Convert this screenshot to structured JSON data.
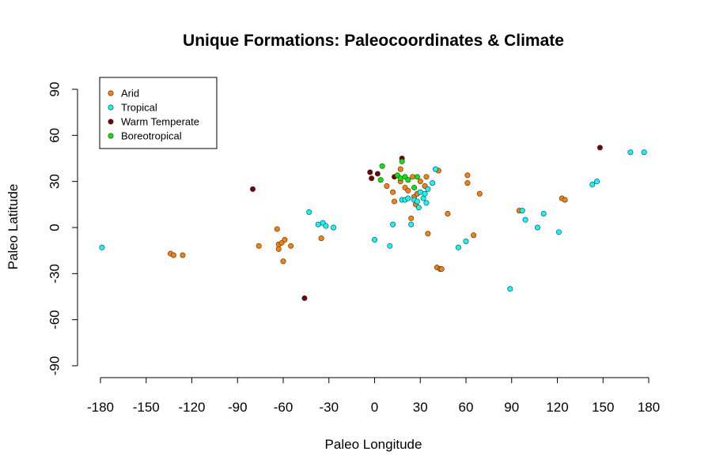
{
  "chart_data": {
    "type": "scatter",
    "title": "Unique Formations: Paleocoordinates & Climate",
    "xlabel": "Paleo Longitude",
    "ylabel": "Paleo Latitude",
    "xlim": [
      -180,
      180
    ],
    "ylim": [
      -90,
      90
    ],
    "xticks": [
      -180,
      -150,
      -120,
      -90,
      -60,
      -30,
      0,
      30,
      60,
      90,
      120,
      150,
      180
    ],
    "yticks": [
      -90,
      -60,
      -30,
      0,
      30,
      60,
      90
    ],
    "grid": false,
    "legend_position": "top-left",
    "series": [
      {
        "name": "Arid",
        "color": "#FF8000",
        "points": [
          [
            -134,
            -17
          ],
          [
            -132,
            -18
          ],
          [
            -126,
            -18
          ],
          [
            -76,
            -12
          ],
          [
            -64,
            -1
          ],
          [
            -63,
            -11
          ],
          [
            -63,
            -14
          ],
          [
            -61,
            -10
          ],
          [
            -60,
            -22
          ],
          [
            -59,
            -8
          ],
          [
            -55,
            -12
          ],
          [
            -35,
            -7
          ],
          [
            8,
            27
          ],
          [
            12,
            23
          ],
          [
            13,
            17
          ],
          [
            17,
            30
          ],
          [
            17,
            38
          ],
          [
            20,
            26
          ],
          [
            22,
            24
          ],
          [
            24,
            6
          ],
          [
            25,
            33
          ],
          [
            26,
            20
          ],
          [
            27,
            15
          ],
          [
            28,
            22
          ],
          [
            30,
            30
          ],
          [
            33,
            27
          ],
          [
            34,
            33
          ],
          [
            35,
            -4
          ],
          [
            42,
            37
          ],
          [
            41,
            -26
          ],
          [
            43,
            -27
          ],
          [
            44,
            -27
          ],
          [
            48,
            9
          ],
          [
            61,
            34
          ],
          [
            61,
            29
          ],
          [
            65,
            -5
          ],
          [
            69,
            22
          ],
          [
            95,
            11
          ],
          [
            123,
            19
          ],
          [
            125,
            18
          ]
        ]
      },
      {
        "name": "Tropical",
        "color": "#00FFFF",
        "points": [
          [
            -179,
            -13
          ],
          [
            -43,
            10
          ],
          [
            -37,
            2
          ],
          [
            -34,
            3
          ],
          [
            -32,
            1
          ],
          [
            -27,
            0
          ],
          [
            0,
            -8
          ],
          [
            10,
            -12
          ],
          [
            12,
            2
          ],
          [
            18,
            18
          ],
          [
            20,
            18
          ],
          [
            22,
            19
          ],
          [
            24,
            2
          ],
          [
            26,
            18
          ],
          [
            28,
            17
          ],
          [
            29,
            13
          ],
          [
            30,
            23
          ],
          [
            32,
            19
          ],
          [
            33,
            22
          ],
          [
            34,
            16
          ],
          [
            35,
            25
          ],
          [
            38,
            29
          ],
          [
            40,
            38
          ],
          [
            55,
            -13
          ],
          [
            60,
            -9
          ],
          [
            89,
            -40
          ],
          [
            97,
            11
          ],
          [
            99,
            5
          ],
          [
            107,
            0
          ],
          [
            111,
            9
          ],
          [
            121,
            -3
          ],
          [
            143,
            28
          ],
          [
            146,
            30
          ],
          [
            168,
            49
          ],
          [
            177,
            49
          ]
        ]
      },
      {
        "name": "Warm Temperate",
        "color": "#7A0000",
        "points": [
          [
            -80,
            25
          ],
          [
            -46,
            -46
          ],
          [
            -3,
            36
          ],
          [
            -2,
            32
          ],
          [
            2,
            35
          ],
          [
            13,
            33
          ],
          [
            18,
            45
          ],
          [
            148,
            52
          ]
        ]
      },
      {
        "name": "Boreotropical",
        "color": "#00EE00",
        "points": [
          [
            4,
            31
          ],
          [
            5,
            40
          ],
          [
            15,
            34
          ],
          [
            17,
            32
          ],
          [
            18,
            43
          ],
          [
            20,
            33
          ],
          [
            22,
            31
          ],
          [
            26,
            26
          ],
          [
            28,
            33
          ]
        ]
      }
    ]
  }
}
